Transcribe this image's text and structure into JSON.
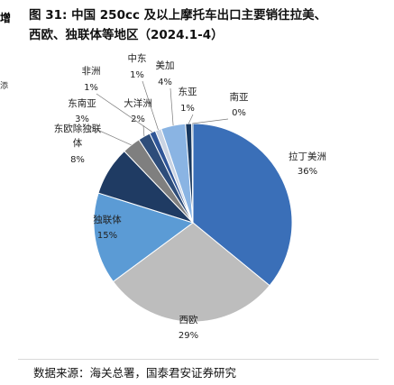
{
  "edge_fragment": {
    "top": "增",
    "mid": "添"
  },
  "title": {
    "line1": "图 31: 中国 250cc 及以上摩托车出口主要销往拉美、",
    "line2": "西欧、独联体等地区（2024.1-4）"
  },
  "source": "数据来源：海关总署，国泰君安证券研究",
  "chart_data": {
    "type": "pie",
    "title": "中国 250cc 及以上摩托车出口主要销往拉美、西欧、独联体等地区（2024.1-4）",
    "slices": [
      {
        "label": "拉丁美洲",
        "pct": "36%",
        "value": 36,
        "color": "#3a6fb8"
      },
      {
        "label": "西欧",
        "pct": "29%",
        "value": 29,
        "color": "#bdbdbd"
      },
      {
        "label": "独联体",
        "pct": "15%",
        "value": 15,
        "color": "#5b9bd5"
      },
      {
        "label": "东欧除独联体",
        "pct": "8%",
        "value": 8,
        "color": "#1f3b63"
      },
      {
        "label": "东南亚",
        "pct": "3%",
        "value": 3,
        "color": "#7f7f7f"
      },
      {
        "label": "大洋洲",
        "pct": "2%",
        "value": 2,
        "color": "#2e4d7a"
      },
      {
        "label": "非洲",
        "pct": "1%",
        "value": 1,
        "color": "#2f5597"
      },
      {
        "label": "中东",
        "pct": "1%",
        "value": 1,
        "color": "#c9d3e3"
      },
      {
        "label": "美加",
        "pct": "4%",
        "value": 4,
        "color": "#8ab4e3"
      },
      {
        "label": "东亚",
        "pct": "1%",
        "value": 1,
        "color": "#17375e"
      },
      {
        "label": "南亚",
        "pct": "0%",
        "value": 0.2,
        "color": "#1f4e79"
      }
    ]
  }
}
